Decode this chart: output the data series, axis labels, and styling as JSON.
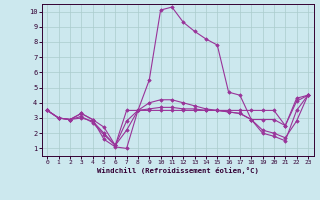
{
  "xlabel": "Windchill (Refroidissement éolien,°C)",
  "background_color": "#cce8ee",
  "line_color": "#993399",
  "grid_color": "#aacccc",
  "xlim": [
    -0.5,
    23.5
  ],
  "ylim": [
    0.5,
    10.5
  ],
  "xticks": [
    0,
    1,
    2,
    3,
    4,
    5,
    6,
    7,
    8,
    9,
    10,
    11,
    12,
    13,
    14,
    15,
    16,
    17,
    18,
    19,
    20,
    21,
    22,
    23
  ],
  "yticks": [
    1,
    2,
    3,
    4,
    5,
    6,
    7,
    8,
    9,
    10
  ],
  "curve1_x": [
    0,
    1,
    2,
    3,
    4,
    5,
    6,
    7,
    8,
    9,
    10,
    11,
    12,
    13,
    14,
    15,
    16,
    17,
    18,
    19,
    20,
    21,
    22,
    23
  ],
  "curve1_y": [
    3.5,
    3.0,
    2.9,
    3.3,
    2.9,
    1.6,
    1.1,
    1.0,
    3.5,
    5.5,
    10.1,
    10.3,
    9.3,
    8.7,
    8.2,
    7.8,
    4.7,
    4.5,
    2.9,
    2.9,
    2.9,
    2.5,
    4.1,
    4.5
  ],
  "curve2_x": [
    0,
    1,
    2,
    3,
    4,
    5,
    6,
    7,
    8,
    9,
    10,
    11,
    12,
    13,
    14,
    15,
    16,
    17,
    18,
    19,
    20,
    21,
    22,
    23
  ],
  "curve2_y": [
    3.5,
    3.0,
    2.9,
    3.3,
    2.9,
    2.4,
    1.2,
    3.5,
    3.5,
    3.5,
    3.5,
    3.5,
    3.5,
    3.5,
    3.5,
    3.5,
    3.5,
    3.5,
    3.5,
    3.5,
    3.5,
    2.5,
    4.3,
    4.5
  ],
  "curve3_x": [
    0,
    1,
    2,
    3,
    4,
    5,
    6,
    7,
    8,
    9,
    10,
    11,
    12,
    13,
    14,
    15,
    16,
    17,
    18,
    19,
    20,
    21,
    22,
    23
  ],
  "curve3_y": [
    3.5,
    3.0,
    2.9,
    3.1,
    2.7,
    1.9,
    1.2,
    2.2,
    3.5,
    4.0,
    4.2,
    4.2,
    4.0,
    3.8,
    3.6,
    3.5,
    3.4,
    3.3,
    2.9,
    2.2,
    2.0,
    1.7,
    2.8,
    4.5
  ],
  "curve4_x": [
    0,
    1,
    2,
    3,
    4,
    5,
    6,
    7,
    8,
    9,
    10,
    11,
    12,
    13,
    14,
    15,
    16,
    17,
    18,
    19,
    20,
    21,
    22,
    23
  ],
  "curve4_y": [
    3.5,
    3.0,
    2.9,
    3.0,
    2.8,
    2.0,
    1.2,
    2.8,
    3.5,
    3.6,
    3.7,
    3.7,
    3.6,
    3.6,
    3.5,
    3.5,
    3.4,
    3.3,
    2.9,
    2.0,
    1.8,
    1.5,
    3.5,
    4.5
  ],
  "spine_color": "#330033",
  "tick_color": "#330033",
  "label_color": "#330033"
}
